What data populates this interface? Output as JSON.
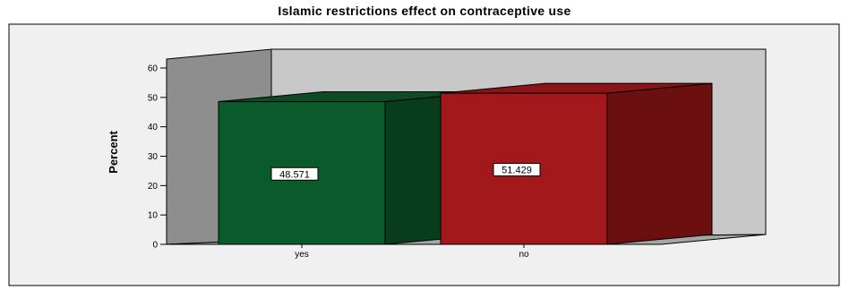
{
  "chart_data": {
    "type": "bar",
    "title": "Islamic restrictions effect on contraceptive use",
    "xlabel": "",
    "ylabel": "Percent",
    "categories": [
      "yes",
      "no"
    ],
    "values": [
      48.571,
      51.429
    ],
    "data_labels": [
      "48.571",
      "51.429"
    ],
    "ylim": [
      0,
      60
    ],
    "yticks": [
      0,
      10,
      20,
      30,
      40,
      50,
      60
    ],
    "grid": false,
    "three_d": true,
    "colors": {
      "bars": [
        "#0b5a2c",
        "#a3181b"
      ],
      "bar_sides": [
        "#073d1d",
        "#6b0f11"
      ],
      "bar_tops": [
        "#0e4a24",
        "#8a1416"
      ],
      "back_wall": "#c8c8c8",
      "side_wall": "#8e8e8e",
      "floor": "#a5a5a5",
      "plot_background": "#f0f0f0"
    }
  }
}
